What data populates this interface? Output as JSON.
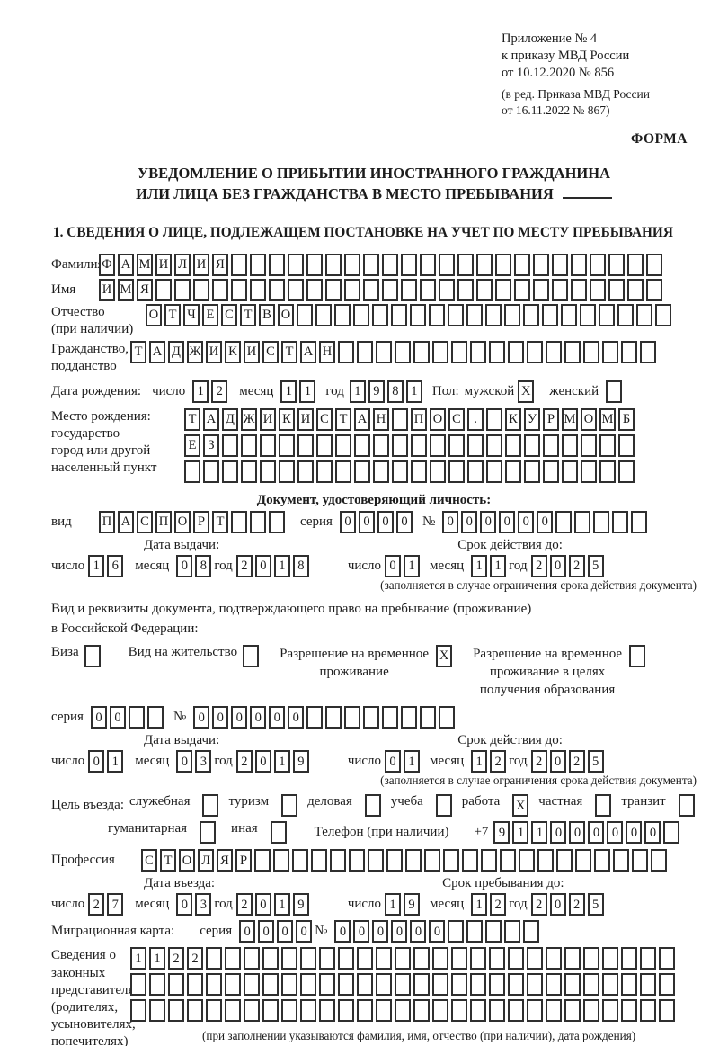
{
  "date_words": {
    "day": "число",
    "month": "месяц",
    "year": "год"
  },
  "header": {
    "annex_lines": [
      "Приложение № 4",
      "к приказу МВД России",
      "от 10.12.2020 № 856"
    ],
    "annex_note_lines": [
      "(в ред. Приказа МВД России",
      "от 16.11.2022 № 867)"
    ],
    "form_marker": "ФОРМА"
  },
  "title": {
    "line1": "УВЕДОМЛЕНИЕ О ПРИБЫТИИ ИНОСТРАННОГО ГРАЖДАНИНА",
    "line2": "ИЛИ ЛИЦА БЕЗ ГРАЖДАНСТВА В МЕСТО ПРЕБЫВАНИЯ"
  },
  "section1_heading": "1. СВЕДЕНИЯ О ЛИЦЕ, ПОДЛЕЖАЩЕМ ПОСТАНОВКЕ НА УЧЕТ ПО МЕСТУ ПРЕБЫВАНИЯ",
  "surname": {
    "label": "Фамилия",
    "field": {
      "boxes": 30,
      "value": "ФАМИЛИЯ"
    }
  },
  "firstname": {
    "label": "Имя",
    "field": {
      "boxes": 30,
      "value": "ИМЯ"
    }
  },
  "patronymic": {
    "label": "Отчество",
    "note": "(при наличии)",
    "field": {
      "boxes": 28,
      "value": "ОТЧЕСТВО"
    }
  },
  "citizenship": {
    "label1": "Гражданство,",
    "label2": "подданство",
    "field": {
      "boxes": 28,
      "value": "ТАДЖИКИСТАН"
    }
  },
  "birth_date": {
    "label": "Дата рождения:",
    "day": {
      "boxes": 2,
      "value": "12"
    },
    "month": {
      "boxes": 2,
      "value": "11"
    },
    "year": {
      "boxes": 4,
      "value": "1981"
    }
  },
  "sex": {
    "label": "Пол:",
    "male_label": "мужской",
    "male": {
      "boxes": 1,
      "value": "X"
    },
    "female_label": "женский",
    "female": {
      "boxes": 1,
      "value": ""
    }
  },
  "birth_place": {
    "label_lines": [
      "Место рождения:",
      "государство",
      "город или другой",
      "населенный пункт"
    ],
    "row1": {
      "boxes": 24,
      "value": "ТАДЖИКИСТАН ПОС. КУРМОМБ"
    },
    "row2": {
      "boxes": 24,
      "value": "ЕЗ"
    },
    "row3": {
      "boxes": 24,
      "value": ""
    }
  },
  "identity_doc": {
    "heading": "Документ, удостоверяющий личность:",
    "kind_label": "вид",
    "kind": {
      "boxes": 10,
      "value": "ПАСПОРТ"
    },
    "series_label": "серия",
    "series": {
      "boxes": 4,
      "value": "0000"
    },
    "number_label": "№",
    "number": {
      "boxes": 11,
      "value": "000000"
    },
    "issue_label": "Дата выдачи:",
    "expiry_label": "Срок действия до:",
    "issue": {
      "day": {
        "boxes": 2,
        "value": "16"
      },
      "month": {
        "boxes": 2,
        "value": "08"
      },
      "year": {
        "boxes": 4,
        "value": "2018"
      }
    },
    "expiry": {
      "day": {
        "boxes": 2,
        "value": "01"
      },
      "month": {
        "boxes": 2,
        "value": "11"
      },
      "year": {
        "boxes": 4,
        "value": "2025"
      }
    },
    "note": "(заполняется в случае ограничения срока действия документа)"
  },
  "residence_doc": {
    "intro1": "Вид и реквизиты документа, подтверждающего право на пребывание (проживание)",
    "intro2": "в Российской Федерации:",
    "options": [
      {
        "label": "Виза",
        "box": {
          "boxes": 1,
          "value": ""
        }
      },
      {
        "label": "Вид на жительство",
        "box": {
          "boxes": 1,
          "value": ""
        }
      },
      {
        "label": "Разрешение на временное\nпроживание",
        "box": {
          "boxes": 1,
          "value": "X"
        }
      },
      {
        "label": "Разрешение на временное\nпроживание в целях\nполучения образования",
        "box": {
          "boxes": 1,
          "value": ""
        }
      }
    ],
    "series_label": "серия",
    "series": {
      "boxes": 4,
      "value": "00"
    },
    "number_label": "№",
    "number": {
      "boxes": 14,
      "value": "000000"
    },
    "issue_label": "Дата выдачи:",
    "expiry_label": "Срок действия до:",
    "issue": {
      "day": {
        "boxes": 2,
        "value": "01"
      },
      "month": {
        "boxes": 2,
        "value": "03"
      },
      "year": {
        "boxes": 4,
        "value": "2019"
      }
    },
    "expiry": {
      "day": {
        "boxes": 2,
        "value": "01"
      },
      "month": {
        "boxes": 2,
        "value": "12"
      },
      "year": {
        "boxes": 4,
        "value": "2025"
      }
    },
    "note": "(заполняется в случае ограничения срока действия документа)"
  },
  "entry_purpose": {
    "label": "Цель въезда:",
    "options": [
      {
        "label": "служебная",
        "box": {
          "boxes": 1,
          "value": ""
        }
      },
      {
        "label": "туризм",
        "box": {
          "boxes": 1,
          "value": ""
        }
      },
      {
        "label": "деловая",
        "box": {
          "boxes": 1,
          "value": ""
        }
      },
      {
        "label": "учеба",
        "box": {
          "boxes": 1,
          "value": ""
        }
      },
      {
        "label": "работа",
        "box": {
          "boxes": 1,
          "value": "X"
        }
      },
      {
        "label": "частная",
        "box": {
          "boxes": 1,
          "value": ""
        }
      },
      {
        "label": "транзит",
        "box": {
          "boxes": 1,
          "value": ""
        }
      },
      {
        "label": "гуманитарная",
        "box": {
          "boxes": 1,
          "value": ""
        }
      },
      {
        "label": "иная",
        "box": {
          "boxes": 1,
          "value": ""
        }
      }
    ],
    "phone_label": "Телефон (при наличии)",
    "phone_prefix": "+7",
    "phone": {
      "boxes": 10,
      "value": "911000000"
    }
  },
  "profession": {
    "label": "Профессия",
    "field": {
      "boxes": 28,
      "value": "СТОЛЯР"
    }
  },
  "entry_dates": {
    "entry_label": "Дата въезда:",
    "stay_label": "Срок пребывания до:",
    "entry": {
      "day": {
        "boxes": 2,
        "value": "27"
      },
      "month": {
        "boxes": 2,
        "value": "03"
      },
      "year": {
        "boxes": 4,
        "value": "2019"
      }
    },
    "stay": {
      "day": {
        "boxes": 2,
        "value": "19"
      },
      "month": {
        "boxes": 2,
        "value": "12"
      },
      "year": {
        "boxes": 4,
        "value": "2025"
      }
    }
  },
  "migration_card": {
    "label": "Миграционная карта:",
    "series_label": "серия",
    "series": {
      "boxes": 4,
      "value": "0000"
    },
    "number_label": "№",
    "number": {
      "boxes": 11,
      "value": "000000"
    }
  },
  "representatives": {
    "label_lines": [
      "Сведения о",
      "законных",
      "представителях",
      "(родителях,",
      "усыновителях,",
      "попечителях)"
    ],
    "row1": {
      "boxes": 29,
      "value": "1122"
    },
    "row2": {
      "boxes": 29,
      "value": ""
    },
    "row3": {
      "boxes": 29,
      "value": ""
    },
    "note": "(при заполнении указываются фамилия, имя, отчество (при наличии), дата рождения)"
  }
}
